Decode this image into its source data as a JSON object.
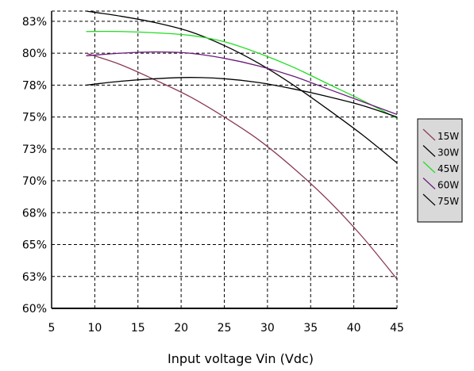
{
  "chart_data": {
    "type": "line",
    "xlabel": "Input voltage Vin (Vdc)",
    "ylabel": "",
    "xlim": [
      5,
      45
    ],
    "ylim": [
      60,
      83.3
    ],
    "x_ticks": [
      5,
      10,
      15,
      20,
      25,
      30,
      35,
      40,
      45
    ],
    "x_tick_labels": [
      "5",
      "10",
      "15",
      "20",
      "25",
      "30",
      "35",
      "40",
      "45"
    ],
    "y_ticks": [
      60,
      62.5,
      65,
      67.5,
      70,
      72.5,
      75,
      77.5,
      80,
      82.5
    ],
    "y_tick_labels": [
      "60%",
      "63%",
      "65%",
      "68%",
      "70%",
      "73%",
      "75%",
      "78%",
      "80%",
      "83%"
    ],
    "grid": true,
    "legend_position": "right",
    "series": [
      {
        "name": "15W",
        "color": "#8b3a56",
        "x": [
          9,
          13,
          17,
          21,
          25,
          29,
          33,
          37,
          41,
          45
        ],
        "y": [
          80.0,
          79.1,
          77.9,
          76.6,
          75.0,
          73.2,
          71.0,
          68.5,
          65.6,
          62.3
        ]
      },
      {
        "name": "30W",
        "color": "#000000",
        "x": [
          9,
          13,
          17,
          21,
          25,
          29,
          33,
          37,
          41,
          45
        ],
        "y": [
          83.3,
          82.9,
          82.4,
          81.7,
          80.6,
          79.2,
          77.5,
          75.6,
          73.6,
          71.4
        ]
      },
      {
        "name": "45W",
        "color": "#22dd22",
        "x": [
          9,
          13,
          17,
          21,
          25,
          29,
          33,
          37,
          41,
          45
        ],
        "y": [
          81.7,
          81.7,
          81.6,
          81.4,
          80.9,
          80.0,
          78.9,
          77.6,
          76.3,
          74.9
        ]
      },
      {
        "name": "60W",
        "color": "#6a1a7a",
        "x": [
          9,
          13,
          17,
          21,
          25,
          29,
          33,
          37,
          41,
          45
        ],
        "y": [
          79.8,
          80.0,
          80.1,
          80.0,
          79.6,
          79.0,
          78.2,
          77.2,
          76.2,
          75.2
        ]
      },
      {
        "name": "75W",
        "color": "#000000",
        "x": [
          9,
          13,
          17,
          21,
          25,
          29,
          33,
          37,
          41,
          45
        ],
        "y": [
          77.5,
          77.8,
          78.0,
          78.1,
          78.0,
          77.7,
          77.2,
          76.6,
          75.9,
          75.0
        ]
      }
    ]
  }
}
